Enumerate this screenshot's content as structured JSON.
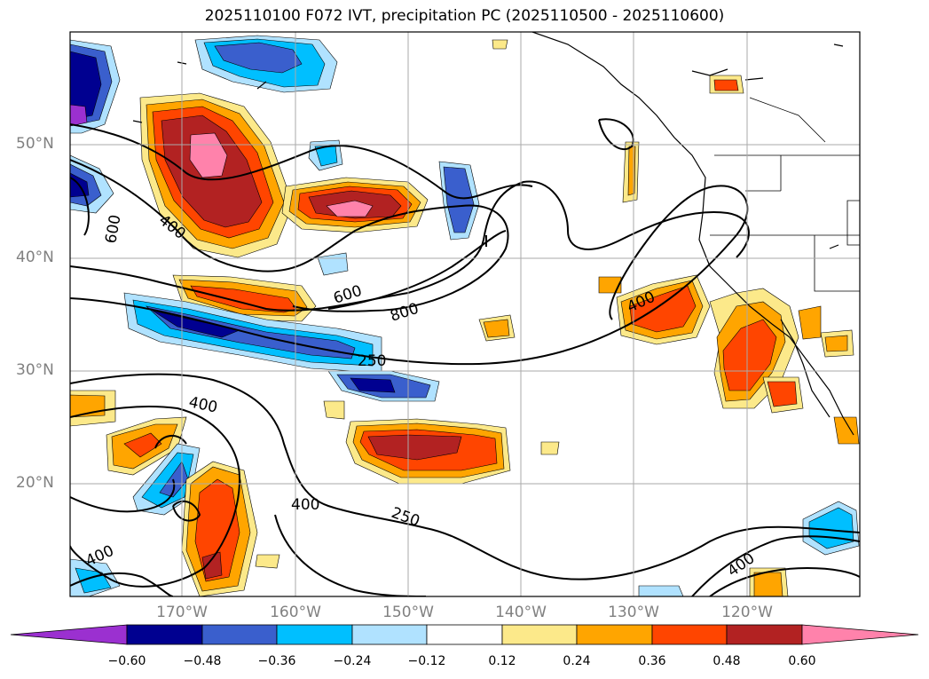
{
  "title": "2025110100 F072 IVT, precipitation PC (2025110500 - 2025110600)",
  "lat_labels": [
    "50°N",
    "40°N",
    "30°N",
    "20°N"
  ],
  "lon_labels": [
    "170°W",
    "160°W",
    "150°W",
    "140°W",
    "130°W",
    "120°W"
  ],
  "contour_labels": [
    "600",
    "400",
    "600",
    "800",
    "250",
    "400",
    "400",
    "250",
    "400",
    "400",
    "400"
  ],
  "colorbar": {
    "ticks": [
      "−0.60",
      "−0.48",
      "−0.36",
      "−0.24",
      "−0.12",
      "0.12",
      "0.24",
      "0.36",
      "0.48",
      "0.60"
    ],
    "colors": [
      "#9b30d0",
      "#000090",
      "#3a5fcd",
      "#00bfff",
      "#b0e2ff",
      "#ffffff",
      "#fce98a",
      "#ffa500",
      "#ff4500",
      "#b22222",
      "#ff82ab"
    ]
  },
  "map": {
    "lat_range": [
      10,
      60
    ],
    "lon_range": [
      -180,
      -110
    ]
  }
}
